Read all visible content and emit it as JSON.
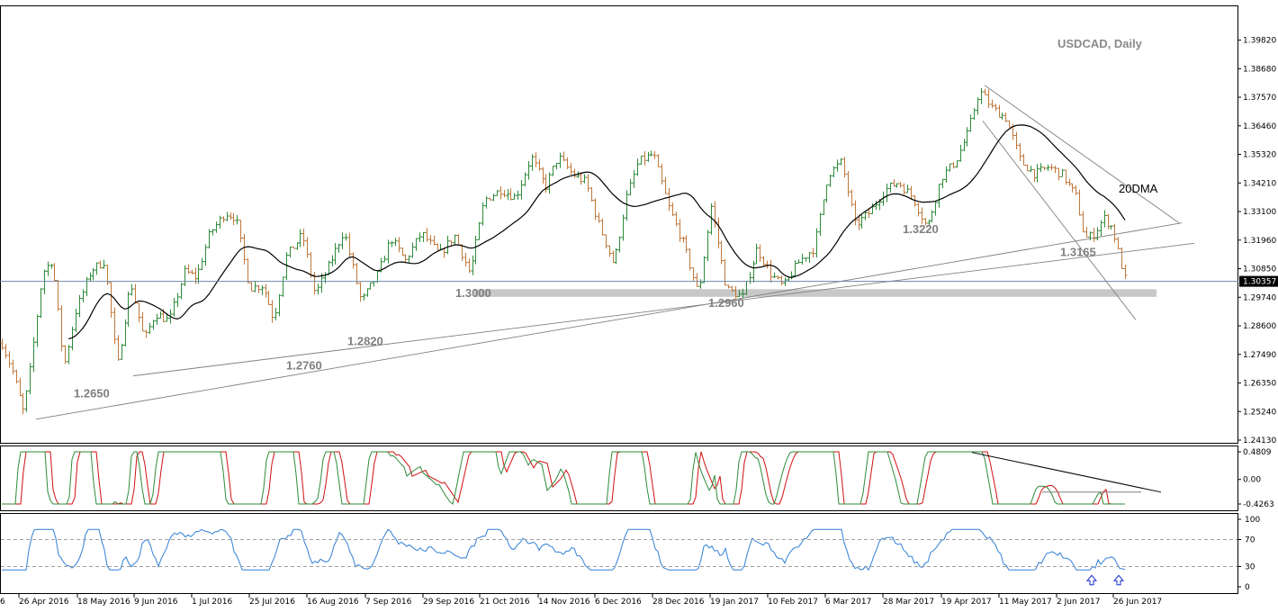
{
  "chart_data": {
    "type": "line",
    "title": "USDCAD, Daily",
    "colors": {
      "up": "#2e8b3a",
      "down": "#c0783c",
      "ma": "#000000",
      "stoch_k": "#2e8b3a",
      "stoch_d": "#d01010",
      "rsi": "#2f7fd6",
      "trend": "#808080",
      "zone": "#c8c8c8"
    },
    "price_axis": {
      "ticks": [
        "1.39820",
        "1.38680",
        "1.37570",
        "1.36460",
        "1.35320",
        "1.34210",
        "1.33100",
        "1.31960",
        "1.30850",
        "1.29740",
        "1.28600",
        "1.27490",
        "1.26350",
        "1.25240",
        "1.24130"
      ],
      "ylim": [
        1.2413,
        1.4037
      ],
      "current": "1.30357"
    },
    "date_axis": [
      "26 Apr 2016",
      "18 May 2016",
      "9 Jun 2016",
      "1 Jul 2016",
      "25 Jul 2016",
      "16 Aug 2016",
      "7 Sep 2016",
      "29 Sep 2016",
      "21 Oct 2016",
      "14 Nov 2016",
      "6 Dec 2016",
      "28 Dec 2016",
      "19 Jan 2017",
      "10 Feb 2017",
      "6 Mar 2017",
      "28 Mar 2017",
      "19 Apr 2017",
      "11 May 2017",
      "2 Jun 2017",
      "26 Jun 2017"
    ],
    "date_axis_partial": "6",
    "level_labels": [
      {
        "text": "1.2650",
        "date": "early Jun 2016",
        "price": 1.258
      },
      {
        "text": "1.2760",
        "date": "mid Aug 2016",
        "price": 1.269
      },
      {
        "text": "1.2820",
        "date": "early Sep 2016",
        "price": 1.2785
      },
      {
        "text": "1.3000",
        "date": "late Oct 2016",
        "price": 1.2975
      },
      {
        "text": "1.2960",
        "date": "mid Jan 2017",
        "price": 1.2935
      },
      {
        "text": "1.3220",
        "date": "late Mar 2017",
        "price": 1.3225
      },
      {
        "text": "1.3165",
        "date": "mid Jun 2017",
        "price": 1.3135
      }
    ],
    "ma_label": "20DMA",
    "stochastic": {
      "ticks": [
        "0.4809",
        "0.00",
        "-0.4263"
      ],
      "ylim": [
        -0.52,
        0.55
      ]
    },
    "rsi": {
      "ticks": [
        "100",
        "70",
        "30",
        "0"
      ],
      "ylim": [
        0,
        100
      ]
    },
    "support_zone": {
      "from": 1.2975,
      "to": 1.3005
    },
    "anchor_points": [
      [
        0,
        1.281
      ],
      [
        14,
        1.268
      ],
      [
        26,
        1.252
      ],
      [
        33,
        1.268
      ],
      [
        47,
        1.307
      ],
      [
        58,
        1.312
      ],
      [
        71,
        1.27
      ],
      [
        84,
        1.292
      ],
      [
        101,
        1.308
      ],
      [
        116,
        1.3115
      ],
      [
        130,
        1.27
      ],
      [
        145,
        1.3035
      ],
      [
        160,
        1.2805
      ],
      [
        172,
        1.291
      ],
      [
        188,
        1.288
      ],
      [
        205,
        1.3075
      ],
      [
        218,
        1.305
      ],
      [
        233,
        1.3225
      ],
      [
        250,
        1.3305
      ],
      [
        262,
        1.3285
      ],
      [
        277,
        1.301
      ],
      [
        292,
        1.302
      ],
      [
        304,
        1.2885
      ],
      [
        318,
        1.3135
      ],
      [
        336,
        1.322
      ],
      [
        350,
        1.2985
      ],
      [
        365,
        1.3095
      ],
      [
        382,
        1.3235
      ],
      [
        401,
        1.2955
      ],
      [
        420,
        1.3065
      ],
      [
        434,
        1.3205
      ],
      [
        450,
        1.3115
      ],
      [
        468,
        1.3225
      ],
      [
        488,
        1.314
      ],
      [
        505,
        1.3215
      ],
      [
        522,
        1.3065
      ],
      [
        538,
        1.3355
      ],
      [
        556,
        1.3395
      ],
      [
        573,
        1.3365
      ],
      [
        590,
        1.3525
      ],
      [
        606,
        1.3405
      ],
      [
        620,
        1.3525
      ],
      [
        636,
        1.3455
      ],
      [
        651,
        1.3425
      ],
      [
        664,
        1.327
      ],
      [
        682,
        1.31
      ],
      [
        696,
        1.3365
      ],
      [
        709,
        1.3505
      ],
      [
        726,
        1.3535
      ],
      [
        743,
        1.3325
      ],
      [
        760,
        1.3175
      ],
      [
        776,
        1.2985
      ],
      [
        790,
        1.3335
      ],
      [
        807,
        1.3005
      ],
      [
        825,
        1.2975
      ],
      [
        841,
        1.3165
      ],
      [
        856,
        1.3065
      ],
      [
        870,
        1.3015
      ],
      [
        888,
        1.3115
      ],
      [
        904,
        1.3165
      ],
      [
        920,
        1.3455
      ],
      [
        935,
        1.3505
      ],
      [
        950,
        1.3255
      ],
      [
        966,
        1.3305
      ],
      [
        983,
        1.3395
      ],
      [
        998,
        1.3425
      ],
      [
        1014,
        1.3365
      ],
      [
        1030,
        1.3245
      ],
      [
        1046,
        1.3445
      ],
      [
        1061,
        1.3505
      ],
      [
        1075,
        1.3615
      ],
      [
        1088,
        1.3785
      ],
      [
        1102,
        1.3715
      ],
      [
        1118,
        1.3675
      ],
      [
        1134,
        1.3505
      ],
      [
        1150,
        1.3455
      ],
      [
        1165,
        1.3485
      ],
      [
        1180,
        1.3455
      ],
      [
        1196,
        1.3365
      ],
      [
        1205,
        1.3205
      ],
      [
        1214,
        1.3215
      ],
      [
        1226,
        1.3285
      ],
      [
        1236,
        1.3245
      ],
      [
        1244,
        1.3125
      ],
      [
        1250,
        1.3045
      ]
    ]
  }
}
